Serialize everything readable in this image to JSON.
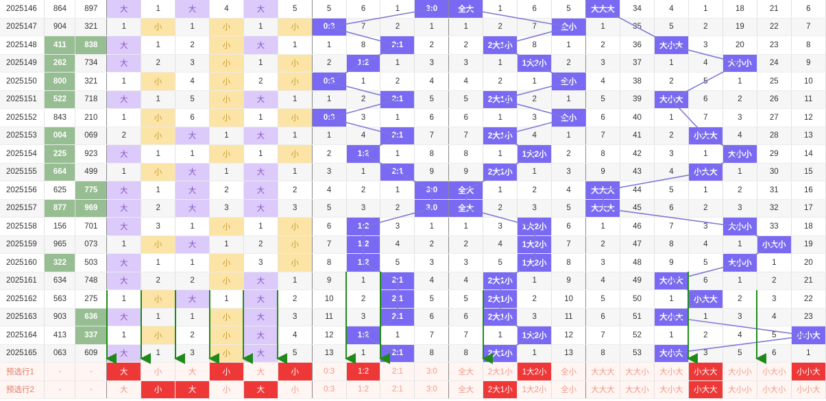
{
  "colors": {
    "green_highlight": "#97bd92",
    "purple_tint": "#dccafa",
    "yellow_tint": "#fce4a6",
    "blue_highlight": "#7a6af3",
    "red_highlight": "#ee3838",
    "line": "#7d78d6",
    "arrow": "#1f8a1a"
  },
  "rows": [
    {
      "issue": "2025146",
      "n1": "864",
      "n2": "897",
      "t": [
        "大",
        "1",
        "大",
        "4",
        "大",
        "5"
      ],
      "m": [
        "5",
        "6",
        "1",
        "3:0"
      ],
      "x": [
        "全大",
        "1",
        "6",
        "5"
      ],
      "p": [
        "大大大",
        "34",
        "4",
        "1",
        "18",
        "21",
        "6"
      ]
    },
    {
      "issue": "2025147",
      "n1": "904",
      "n2": "321",
      "t": [
        "1",
        "小",
        "1",
        "小",
        "1",
        "小"
      ],
      "m": [
        "0:3",
        "7",
        "2",
        "1"
      ],
      "x": [
        "1",
        "2",
        "7",
        "全小"
      ],
      "p": [
        "1",
        "35",
        "5",
        "2",
        "19",
        "22",
        "7"
      ]
    },
    {
      "issue": "2025148",
      "n1": "411",
      "n2": "838",
      "t": [
        "大",
        "1",
        "2",
        "小",
        "大",
        "1"
      ],
      "m": [
        "1",
        "8",
        "2:1",
        "2"
      ],
      "x": [
        "2",
        "2大1小",
        "8",
        "1"
      ],
      "p": [
        "2",
        "36",
        "大小大",
        "3",
        "20",
        "23",
        "8"
      ]
    },
    {
      "issue": "2025149",
      "n1": "262",
      "n2": "734",
      "t": [
        "大",
        "2",
        "3",
        "小",
        "1",
        "小"
      ],
      "m": [
        "2",
        "1:2",
        "1",
        "3"
      ],
      "x": [
        "3",
        "1",
        "1大2小",
        "2"
      ],
      "p": [
        "3",
        "37",
        "1",
        "4",
        "大小小",
        "24",
        "9"
      ]
    },
    {
      "issue": "2025150",
      "n1": "800",
      "n2": "321",
      "t": [
        "1",
        "小",
        "4",
        "小",
        "2",
        "小"
      ],
      "m": [
        "0:3",
        "1",
        "2",
        "4"
      ],
      "x": [
        "4",
        "2",
        "1",
        "全小"
      ],
      "p": [
        "4",
        "38",
        "2",
        "5",
        "1",
        "25",
        "10"
      ]
    },
    {
      "issue": "2025151",
      "n1": "522",
      "n2": "718",
      "t": [
        "大",
        "1",
        "5",
        "小",
        "大",
        "1"
      ],
      "m": [
        "1",
        "2",
        "2:1",
        "5"
      ],
      "x": [
        "5",
        "2大1小",
        "2",
        "1"
      ],
      "p": [
        "5",
        "39",
        "大小大",
        "6",
        "2",
        "26",
        "11"
      ]
    },
    {
      "issue": "2025152",
      "n1": "843",
      "n2": "210",
      "t": [
        "1",
        "小",
        "6",
        "小",
        "1",
        "小"
      ],
      "m": [
        "0:3",
        "3",
        "1",
        "6"
      ],
      "x": [
        "6",
        "1",
        "3",
        "全小"
      ],
      "p": [
        "6",
        "40",
        "1",
        "7",
        "3",
        "27",
        "12"
      ]
    },
    {
      "issue": "2025153",
      "n1": "004",
      "n2": "069",
      "t": [
        "2",
        "小",
        "大",
        "1",
        "大",
        "1"
      ],
      "m": [
        "1",
        "4",
        "2:1",
        "7"
      ],
      "x": [
        "7",
        "2大1小",
        "4",
        "1"
      ],
      "p": [
        "7",
        "41",
        "2",
        "小大大",
        "4",
        "28",
        "13"
      ]
    },
    {
      "issue": "2025154",
      "n1": "225",
      "n2": "923",
      "t": [
        "大",
        "1",
        "1",
        "小",
        "1",
        "小"
      ],
      "m": [
        "2",
        "1:2",
        "1",
        "8"
      ],
      "x": [
        "8",
        "1",
        "1大2小",
        "2"
      ],
      "p": [
        "8",
        "42",
        "3",
        "1",
        "大小小",
        "29",
        "14"
      ]
    },
    {
      "issue": "2025155",
      "n1": "664",
      "n2": "499",
      "t": [
        "1",
        "小",
        "大",
        "1",
        "大",
        "1"
      ],
      "m": [
        "3",
        "1",
        "2:1",
        "9"
      ],
      "x": [
        "9",
        "2大1小",
        "1",
        "3"
      ],
      "p": [
        "9",
        "43",
        "4",
        "小大大",
        "1",
        "30",
        "15"
      ]
    },
    {
      "issue": "2025156",
      "n1": "625",
      "n2": "775",
      "t": [
        "大",
        "1",
        "大",
        "2",
        "大",
        "2"
      ],
      "m": [
        "4",
        "2",
        "1",
        "3:0"
      ],
      "x": [
        "全大",
        "1",
        "2",
        "4"
      ],
      "p": [
        "大大大",
        "44",
        "5",
        "1",
        "2",
        "31",
        "16"
      ]
    },
    {
      "issue": "2025157",
      "n1": "877",
      "n2": "969",
      "t": [
        "大",
        "2",
        "大",
        "3",
        "大",
        "3"
      ],
      "m": [
        "5",
        "3",
        "2",
        "3:0"
      ],
      "x": [
        "全大",
        "2",
        "3",
        "5"
      ],
      "p": [
        "大大大",
        "45",
        "6",
        "2",
        "3",
        "32",
        "17"
      ]
    },
    {
      "issue": "2025158",
      "n1": "156",
      "n2": "701",
      "t": [
        "大",
        "3",
        "1",
        "小",
        "1",
        "小"
      ],
      "m": [
        "6",
        "1:2",
        "3",
        "1"
      ],
      "x": [
        "1",
        "3",
        "1大2小",
        "6"
      ],
      "p": [
        "1",
        "46",
        "7",
        "3",
        "大小小",
        "33",
        "18"
      ]
    },
    {
      "issue": "2025159",
      "n1": "965",
      "n2": "073",
      "t": [
        "1",
        "小",
        "大",
        "1",
        "2",
        "小"
      ],
      "m": [
        "7",
        "1:2",
        "4",
        "2"
      ],
      "x": [
        "2",
        "4",
        "1大2小",
        "7"
      ],
      "p": [
        "2",
        "47",
        "8",
        "4",
        "1",
        "小大小",
        "19"
      ]
    },
    {
      "issue": "2025160",
      "n1": "322",
      "n2": "503",
      "t": [
        "大",
        "1",
        "1",
        "小",
        "3",
        "小"
      ],
      "m": [
        "8",
        "1:2",
        "5",
        "3"
      ],
      "x": [
        "3",
        "5",
        "1大2小",
        "8"
      ],
      "p": [
        "3",
        "48",
        "9",
        "5",
        "大小小",
        "1",
        "20"
      ]
    },
    {
      "issue": "2025161",
      "n1": "634",
      "n2": "748",
      "t": [
        "大",
        "2",
        "2",
        "小",
        "大",
        "1"
      ],
      "m": [
        "9",
        "1",
        "2:1",
        "4"
      ],
      "x": [
        "4",
        "2大1小",
        "1",
        "9"
      ],
      "p": [
        "4",
        "49",
        "大小大",
        "6",
        "1",
        "2",
        "21"
      ]
    },
    {
      "issue": "2025162",
      "n1": "563",
      "n2": "275",
      "t": [
        "1",
        "小",
        "大",
        "1",
        "大",
        "2"
      ],
      "m": [
        "10",
        "2",
        "2:1",
        "5"
      ],
      "x": [
        "5",
        "2大1小",
        "2",
        "10"
      ],
      "p": [
        "5",
        "50",
        "1",
        "小大大",
        "2",
        "3",
        "22"
      ]
    },
    {
      "issue": "2025163",
      "n1": "903",
      "n2": "636",
      "t": [
        "大",
        "1",
        "1",
        "小",
        "大",
        "3"
      ],
      "m": [
        "11",
        "3",
        "2:1",
        "6"
      ],
      "x": [
        "6",
        "2大1小",
        "3",
        "11"
      ],
      "p": [
        "6",
        "51",
        "大小大",
        "1",
        "3",
        "4",
        "23"
      ]
    },
    {
      "issue": "2025164",
      "n1": "413",
      "n2": "337",
      "t": [
        "1",
        "小",
        "2",
        "小",
        "大",
        "4"
      ],
      "m": [
        "12",
        "1:2",
        "1",
        "7"
      ],
      "x": [
        "7",
        "1",
        "1大2小",
        "12"
      ],
      "p": [
        "7",
        "52",
        "1",
        "2",
        "4",
        "5",
        "小小大"
      ]
    },
    {
      "issue": "2025165",
      "n1": "063",
      "n2": "609",
      "t": [
        "大",
        "1",
        "3",
        "小",
        "大",
        "5"
      ],
      "m": [
        "13",
        "1",
        "2:1",
        "8"
      ],
      "x": [
        "8",
        "2大1小",
        "1",
        "13"
      ],
      "p": [
        "8",
        "53",
        "大小大",
        "3",
        "5",
        "6",
        "1"
      ]
    }
  ],
  "preselect": [
    {
      "issue": "预选行1",
      "n1": "-",
      "n2": "-",
      "t": [
        "大",
        "小",
        "大",
        "小",
        "大",
        "小"
      ],
      "m": [
        "0:3",
        "1:2",
        "2:1",
        "3:0"
      ],
      "x": [
        "全大",
        "2大1小",
        "1大2小",
        "全小"
      ],
      "p": [
        "大大大",
        "大大小",
        "大小大",
        "小大大",
        "大小小",
        "小大小",
        "小小大"
      ]
    },
    {
      "issue": "预选行2",
      "n1": "-",
      "n2": "-",
      "t": [
        "大",
        "小",
        "大",
        "小",
        "大",
        "小"
      ],
      "m": [
        "0:3",
        "1:2",
        "2:1",
        "3:0"
      ],
      "x": [
        "全大",
        "2大1小",
        "1大2小",
        "全小"
      ],
      "p": [
        "大大大",
        "大大小",
        "大小大",
        "小大大",
        "大小小",
        "小大小",
        "小小大"
      ]
    }
  ]
}
